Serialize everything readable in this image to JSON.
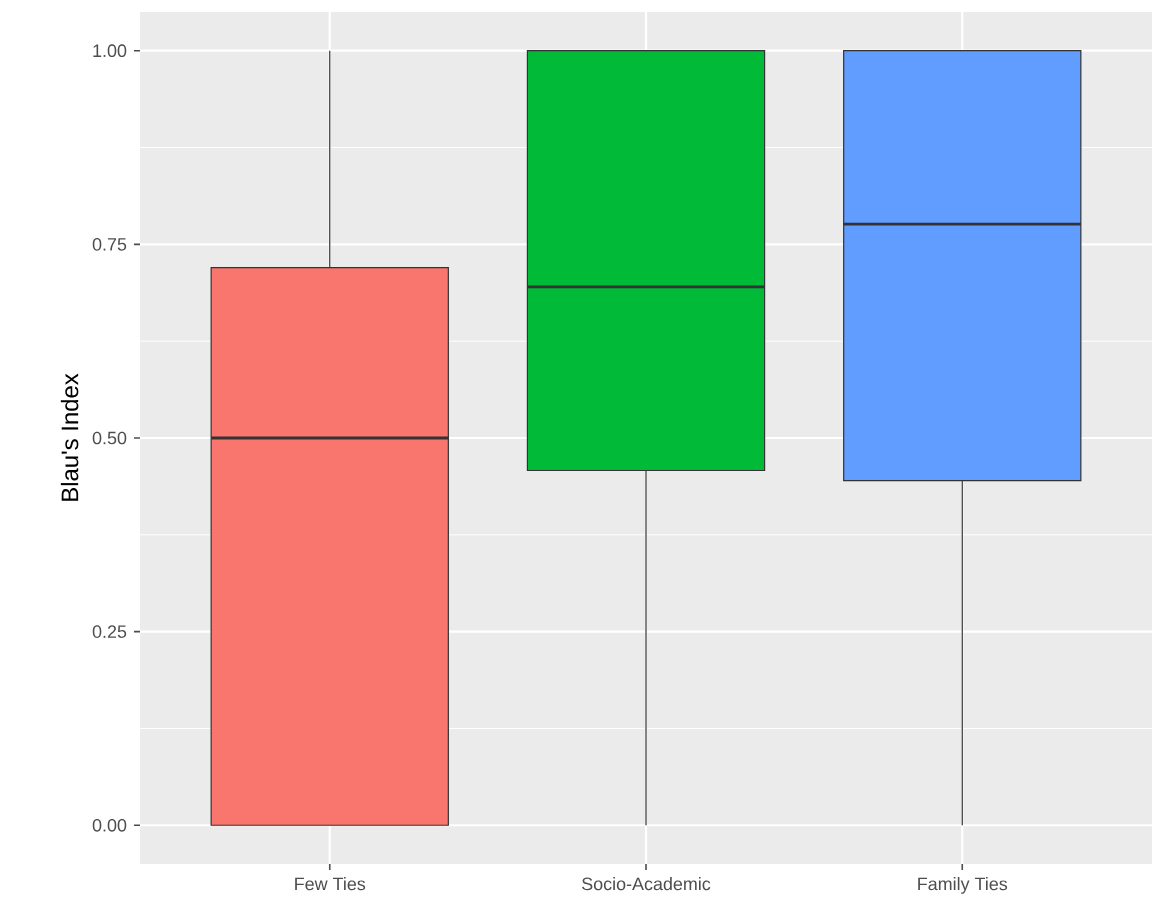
{
  "chart_data": {
    "type": "box",
    "ylabel": "Blau's Index",
    "categories": [
      "Few Ties",
      "Socio-Academic",
      "Family Ties"
    ],
    "boxes": [
      {
        "low": 0,
        "q1": 0,
        "median": 0.5,
        "q3": 0.72,
        "high": 1
      },
      {
        "low": 0,
        "q1": 0.458,
        "median": 0.695,
        "q3": 1,
        "high": 1
      },
      {
        "low": 0,
        "q1": 0.445,
        "median": 0.776,
        "q3": 1,
        "high": 1
      }
    ],
    "colors": [
      "#f8766d",
      "#00ba38",
      "#619cff"
    ],
    "ylim": [
      -0.05,
      1.05
    ],
    "yticks": [
      {
        "value": 0,
        "label": "0.00"
      },
      {
        "value": 0.25,
        "label": "0.25"
      },
      {
        "value": 0.5,
        "label": "0.50"
      },
      {
        "value": 0.75,
        "label": "0.75"
      },
      {
        "value": 1,
        "label": "1.00"
      }
    ],
    "grid": true
  }
}
